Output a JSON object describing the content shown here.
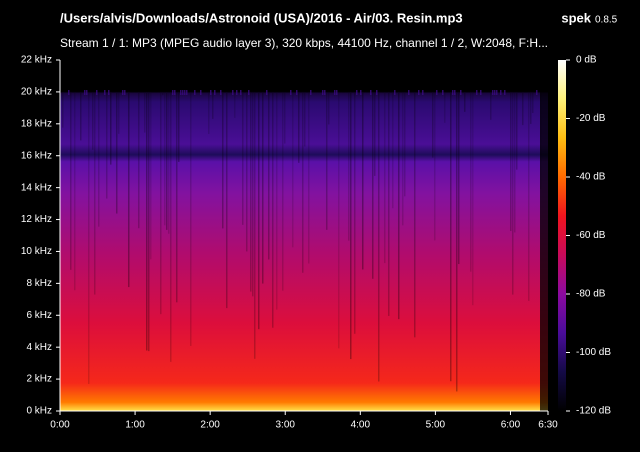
{
  "chart_data": {
    "type": "spectrogram",
    "title": "/Users/alvis/Downloads/Astronoid (USA)/2016 - Air/03. Resin.mp3",
    "app_name": "spek",
    "app_version": "0.8.5",
    "subtitle": "Stream 1 / 1: MP3 (MPEG audio layer 3), 320 kbps, 44100 Hz, channel 1 / 2, W:2048, F:H...",
    "xlim": [
      0,
      390
    ],
    "xticks": [
      {
        "value": 0,
        "label": "0:00"
      },
      {
        "value": 60,
        "label": "1:00"
      },
      {
        "value": 120,
        "label": "2:00"
      },
      {
        "value": 180,
        "label": "3:00"
      },
      {
        "value": 240,
        "label": "4:00"
      },
      {
        "value": 300,
        "label": "5:00"
      },
      {
        "value": 360,
        "label": "6:00"
      },
      {
        "value": 390,
        "label": "6:30"
      }
    ],
    "ylim": [
      0,
      22
    ],
    "yticks": [
      {
        "value": 0,
        "label": "0 kHz"
      },
      {
        "value": 2,
        "label": "2 kHz"
      },
      {
        "value": 4,
        "label": "4 kHz"
      },
      {
        "value": 6,
        "label": "6 kHz"
      },
      {
        "value": 8,
        "label": "8 kHz"
      },
      {
        "value": 10,
        "label": "10 kHz"
      },
      {
        "value": 12,
        "label": "12 kHz"
      },
      {
        "value": 14,
        "label": "14 kHz"
      },
      {
        "value": 16,
        "label": "16 kHz"
      },
      {
        "value": 18,
        "label": "18 kHz"
      },
      {
        "value": 20,
        "label": "20 kHz"
      },
      {
        "value": 22,
        "label": "22 kHz"
      }
    ],
    "clim": [
      -120,
      0
    ],
    "cticks": [
      {
        "value": 0,
        "label": "0 dB"
      },
      {
        "value": -20,
        "label": "-20 dB"
      },
      {
        "value": -40,
        "label": "-40 dB"
      },
      {
        "value": -60,
        "label": "-60 dB"
      },
      {
        "value": -80,
        "label": "-80 dB"
      },
      {
        "value": -100,
        "label": "-100 dB"
      },
      {
        "value": -120,
        "label": "-120 dB"
      }
    ],
    "colormap": [
      "#ffffff",
      "#fff27a",
      "#ffbe12",
      "#ff6a00",
      "#f0141e",
      "#c80a5a",
      "#8c0aa0",
      "#4a0c9a",
      "#140a46",
      "#000000"
    ]
  }
}
